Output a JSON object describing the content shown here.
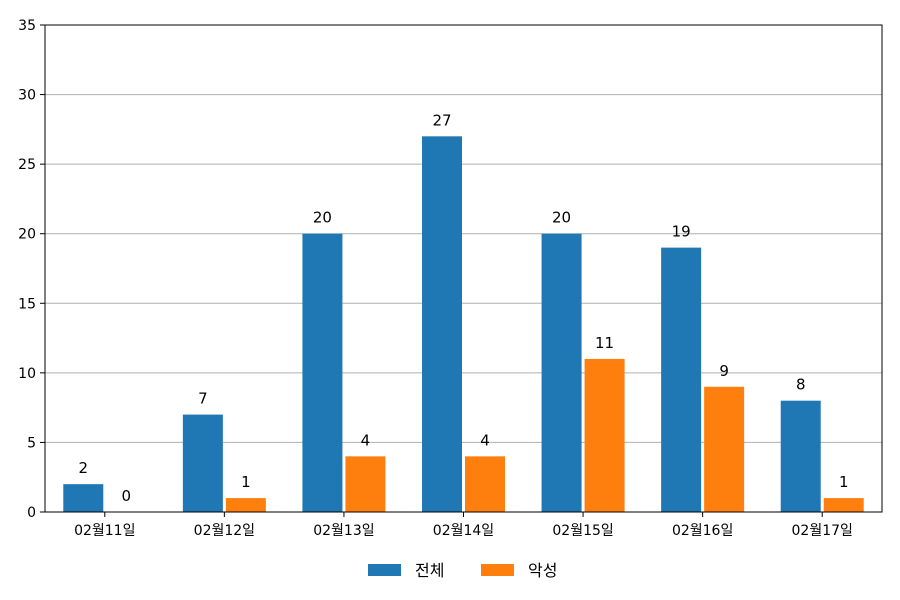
{
  "chart_data": {
    "type": "bar",
    "categories": [
      "02월11일",
      "02월12일",
      "02월13일",
      "02월14일",
      "02월15일",
      "02월16일",
      "02월17일"
    ],
    "series": [
      {
        "name": "전체",
        "values": [
          2,
          7,
          20,
          27,
          20,
          19,
          8
        ],
        "color": "#1f77b4"
      },
      {
        "name": "악성",
        "values": [
          0,
          1,
          4,
          4,
          11,
          9,
          1
        ],
        "color": "#ff7f0e"
      }
    ],
    "y_ticks": [
      0,
      5,
      10,
      15,
      20,
      25,
      30,
      35
    ],
    "ylim": [
      0,
      35
    ],
    "grid": "horizontal",
    "legend_position": "bottom-center",
    "data_labels": true
  }
}
